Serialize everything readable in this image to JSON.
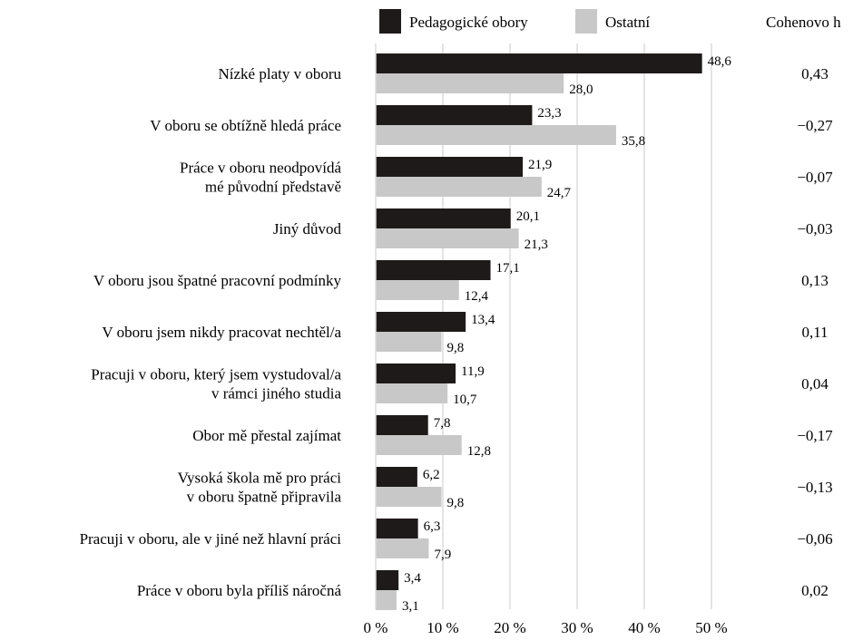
{
  "chart_data": {
    "type": "bar",
    "orientation": "horizontal",
    "categories": [
      [
        "Nízké platy v oboru"
      ],
      [
        "V oboru se obtížně hledá práce"
      ],
      [
        "Práce v oboru neodpovídá",
        "mé původní představě"
      ],
      [
        "Jiný důvod"
      ],
      [
        "V oboru jsou špatné pracovní podmínky"
      ],
      [
        "V oboru jsem nikdy pracovat nechtěl/a"
      ],
      [
        "Pracuji v oboru, který jsem vystudoval/a",
        "v rámci jiného studia"
      ],
      [
        "Obor mě přestal zajímat"
      ],
      [
        "Vysoká škola mě pro práci",
        "v oboru špatně připravila"
      ],
      [
        "Pracuji v oboru, ale v jiné než hlavní práci"
      ],
      [
        "Práce v oboru byla příliš náročná"
      ]
    ],
    "series": [
      {
        "name": "Pedagogické obory",
        "color": "#1f1a1a",
        "values": [
          48.6,
          23.3,
          21.9,
          20.1,
          17.1,
          13.4,
          11.9,
          7.8,
          6.2,
          6.3,
          3.4
        ],
        "labels": [
          "48,6",
          "23,3",
          "21,9",
          "20,1",
          "17,1",
          "13,4",
          "11,9",
          "7,8",
          "6,2",
          "6,3",
          "3,4"
        ]
      },
      {
        "name": "Ostatní",
        "color": "#c8c8c8",
        "values": [
          28.0,
          35.8,
          24.7,
          21.3,
          12.4,
          9.8,
          10.7,
          12.8,
          9.8,
          7.9,
          3.1
        ],
        "labels": [
          "28,0",
          "35,8",
          "24,7",
          "21,3",
          "12,4",
          "9,8",
          "10,7",
          "12,8",
          "9,8",
          "7,9",
          "3,1"
        ]
      }
    ],
    "cohen_header": "Cohenovo h",
    "cohen_h": [
      "0,43",
      "−0,27",
      "−0,07",
      "−0,03",
      "0,13",
      "0,11",
      "0,04",
      "−0,17",
      "−0,13",
      "−0,06",
      "0,02"
    ],
    "xticks": [
      0,
      10,
      20,
      30,
      40,
      50
    ],
    "xtick_labels": [
      "0 %",
      "10 %",
      "20 %",
      "30 %",
      "40 %",
      "50 %"
    ],
    "xlim": [
      0,
      50
    ],
    "grid": "vertical",
    "legend": "top"
  }
}
